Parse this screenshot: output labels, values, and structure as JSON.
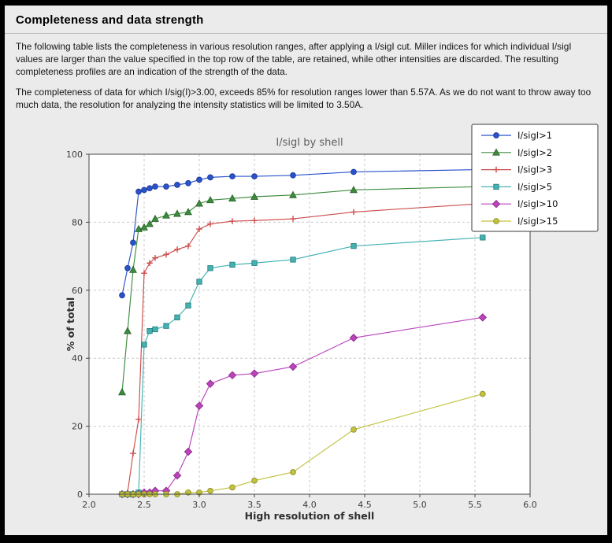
{
  "header": {
    "title": "Completeness and data strength"
  },
  "paragraphs": [
    "The following table lists the completeness in various resolution ranges, after applying a I/sigI cut. Miller indices for which individual I/sigI values are larger than the value specified in the top row of the table, are retained, while other intensities are discarded. The resulting completeness profiles are an indication of the strength of the data.",
    "The completeness of data for which I/sig(I)>3.00, exceeds  85% for resolution ranges lower than 5.57A. As we do not want to throw away too much data, the resolution for analyzing the intensity statistics will be limited to 3.50A."
  ],
  "chart_data": {
    "type": "line",
    "title": "I/sigI by shell",
    "xlabel": "High resolution of shell",
    "ylabel": "% of total",
    "xlim": [
      2.0,
      6.0
    ],
    "ylim": [
      0,
      100
    ],
    "xticks": [
      2.0,
      2.5,
      3.0,
      3.5,
      4.0,
      4.5,
      5.0,
      5.5,
      6.0
    ],
    "xtick_labels": [
      "2.0",
      "2.5",
      "3.0",
      "3.5",
      "4.0",
      "4.5",
      "5.0",
      "5.5",
      "6.0"
    ],
    "yticks": [
      0,
      20,
      40,
      60,
      80,
      100
    ],
    "ytick_labels": [
      "0",
      "20",
      "40",
      "60",
      "80",
      "100"
    ],
    "grid": true,
    "legend_position": "upper right",
    "x": [
      2.3,
      2.35,
      2.4,
      2.45,
      2.5,
      2.55,
      2.6,
      2.7,
      2.8,
      2.9,
      3.0,
      3.1,
      3.3,
      3.5,
      3.85,
      4.4,
      5.57
    ],
    "series": [
      {
        "name": "I/sigI>1",
        "color": "#2952cc",
        "edge": "#1c3a94",
        "marker": "circle",
        "values": [
          58.5,
          66.5,
          74,
          89,
          89.5,
          90,
          90.5,
          90.5,
          91,
          91.5,
          92.5,
          93.2,
          93.5,
          93.5,
          93.8,
          94.8,
          95.5
        ]
      },
      {
        "name": "I/sigI>2",
        "color": "#3e8b3e",
        "edge": "#2a662a",
        "marker": "triangle",
        "values": [
          30,
          48,
          66,
          78,
          78.5,
          79.5,
          81,
          82,
          82.5,
          83,
          85.5,
          86.5,
          87,
          87.5,
          88,
          89.5,
          90.5
        ]
      },
      {
        "name": "I/sigI>3",
        "color": "#cc4c4c",
        "edge": "#a03030",
        "marker": "plus",
        "values": [
          0,
          0.5,
          12,
          22,
          65,
          68,
          69.5,
          70.5,
          72,
          73,
          78,
          79.5,
          80.3,
          80.5,
          81,
          83,
          85.5
        ]
      },
      {
        "name": "I/sigI>5",
        "color": "#44b2b2",
        "edge": "#2a8080",
        "marker": "square",
        "values": [
          0,
          0,
          0,
          0.5,
          44,
          48,
          48.5,
          49.5,
          52,
          55.5,
          62.5,
          66.5,
          67.5,
          68,
          69,
          73,
          75.5
        ]
      },
      {
        "name": "I/sigI>10",
        "color": "#bb44bb",
        "edge": "#8a2a8a",
        "marker": "diamond",
        "values": [
          0,
          0,
          0,
          0,
          0.5,
          0.5,
          1,
          1,
          5.5,
          12.5,
          26,
          32.5,
          35,
          35.5,
          37.5,
          46,
          52
        ]
      },
      {
        "name": "I/sigI>15",
        "color": "#c2c23e",
        "edge": "#8f8f2a",
        "marker": "circle",
        "values": [
          0,
          0,
          0,
          0,
          0,
          0,
          0,
          0,
          0,
          0.5,
          0.5,
          1,
          2,
          4,
          6.5,
          19,
          29.5
        ]
      }
    ]
  }
}
